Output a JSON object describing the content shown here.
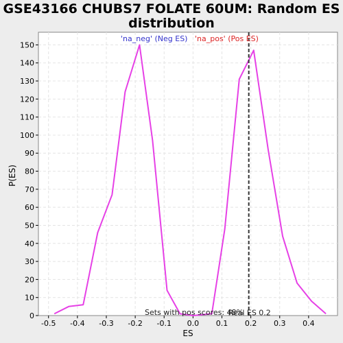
{
  "chart_data": {
    "type": "line",
    "title_line1": "GSE43166 CHUBS7 FOLATE 60UM: Random ES",
    "title_line2": "distribution",
    "xlabel": "ES",
    "ylabel": "P(ES)",
    "xlim": [
      -0.535,
      0.5
    ],
    "ylim": [
      0,
      157
    ],
    "x_ticks": [
      -0.5,
      -0.4,
      -0.3,
      -0.2,
      -0.1,
      0.0,
      0.1,
      0.2,
      0.3,
      0.4
    ],
    "x_tick_labels": [
      "-0.5",
      "-0.4",
      "-0.3",
      "-0.2",
      "-0.1",
      "0.0",
      "0.1",
      "0.2",
      "0.3",
      "0.4"
    ],
    "y_ticks": [
      0,
      10,
      20,
      30,
      40,
      50,
      60,
      70,
      80,
      90,
      100,
      110,
      120,
      130,
      140,
      150
    ],
    "grid": true,
    "legend": {
      "placement": "top-center",
      "entries": [
        {
          "label": "'na_neg' (Neg ES)",
          "color": "#3333cc"
        },
        {
          "label": "'na_pos' (Pos ES)",
          "color": "#dd2222"
        }
      ]
    },
    "series": [
      {
        "color": "#e640e6",
        "x": [
          -0.48,
          -0.43,
          -0.38,
          -0.33,
          -0.28,
          -0.235,
          -0.185,
          -0.14,
          -0.09,
          -0.045,
          0.0,
          0.065,
          0.11,
          0.16,
          0.21,
          0.26,
          0.31,
          0.36,
          0.41,
          0.46
        ],
        "y": [
          1,
          5,
          6,
          46,
          67,
          124,
          150,
          97,
          14,
          1,
          0,
          1,
          48,
          131,
          147,
          92,
          44,
          18,
          8,
          1
        ]
      }
    ],
    "marker": {
      "x": 0.193,
      "label": "Real ES 0.2",
      "color": "#333333"
    },
    "annotation": "Sets with pos scores: 48%"
  }
}
